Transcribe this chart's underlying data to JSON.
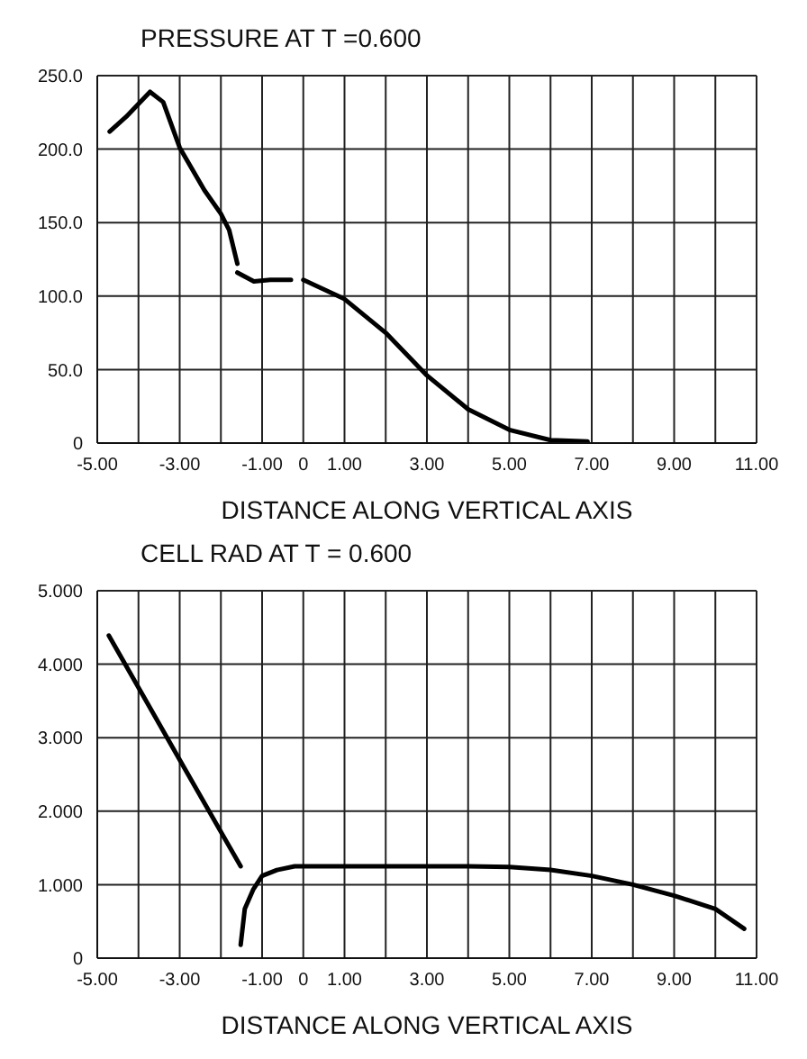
{
  "chart_data": [
    {
      "type": "line",
      "title": "PRESSURE AT T =0.600",
      "xlabel": "DISTANCE ALONG VERTICAL AXIS",
      "series": [
        {
          "color": "#000000",
          "x": [
            -4.7,
            -4.3,
            -3.72,
            -3.4,
            -3,
            -2.4,
            -2,
            -1.8,
            -1.6
          ],
          "values": [
            212,
            222,
            239,
            232,
            201,
            172,
            156,
            145,
            122
          ]
        },
        {
          "color": "#000000",
          "x": [
            -1.6,
            -1.2,
            -0.8,
            -0.3
          ],
          "values": [
            116,
            110,
            111,
            111
          ]
        },
        {
          "color": "#000000",
          "x": [
            0,
            1,
            2,
            3,
            4,
            5,
            6,
            6.9
          ],
          "values": [
            111,
            98,
            75,
            46,
            23,
            9,
            2,
            1
          ]
        }
      ],
      "xlim": [
        -5,
        11
      ],
      "ylim": [
        0,
        250
      ],
      "xticks": [
        {
          "value": -5,
          "label": "-5.00"
        },
        {
          "value": -4,
          "label": null
        },
        {
          "value": -3,
          "label": "-3.00"
        },
        {
          "value": -2,
          "label": null
        },
        {
          "value": -1,
          "label": "-1.00"
        },
        0,
        {
          "value": 1,
          "label": "1.00"
        },
        {
          "value": 2,
          "label": null
        },
        {
          "value": 3,
          "label": "3.00"
        },
        {
          "value": 4,
          "label": null
        },
        {
          "value": 5,
          "label": "5.00"
        },
        {
          "value": 6,
          "label": null
        },
        {
          "value": 7,
          "label": "7.00"
        },
        {
          "value": 8,
          "label": null
        },
        {
          "value": 9,
          "label": "9.00"
        },
        {
          "value": 10,
          "label": null
        },
        {
          "value": 11,
          "label": "11.00"
        }
      ],
      "yticks": [
        0,
        {
          "value": 50,
          "label": "50.0"
        },
        {
          "value": 100,
          "label": "100.0"
        },
        {
          "value": 150,
          "label": "150.0"
        },
        {
          "value": 200,
          "label": "200.0"
        },
        {
          "value": 250,
          "label": "250.0"
        }
      ],
      "grid": true,
      "marker": "none",
      "line_style": "solid"
    },
    {
      "type": "line",
      "title": "CELL RAD AT T = 0.600",
      "xlabel": "DISTANCE ALONG VERTICAL AXIS",
      "series": [
        {
          "color": "#000000",
          "x": [
            -4.72,
            -3,
            -1.52
          ],
          "values": [
            4.39,
            2.7,
            1.25
          ]
        },
        {
          "color": "#000000",
          "x": [
            -1.52,
            -1.42,
            -1.21,
            -1,
            -0.64,
            -0.21,
            0,
            2,
            4,
            5,
            6,
            7,
            8,
            9,
            10,
            10.7
          ],
          "values": [
            0.18,
            0.67,
            0.94,
            1.12,
            1.2,
            1.25,
            1.25,
            1.25,
            1.25,
            1.24,
            1.2,
            1.12,
            1,
            0.85,
            0.67,
            0.4
          ]
        }
      ],
      "xlim": [
        -5,
        11
      ],
      "ylim": [
        0,
        5
      ],
      "xticks": [
        {
          "value": -5,
          "label": "-5.00"
        },
        {
          "value": -4,
          "label": null
        },
        {
          "value": -3,
          "label": "-3.00"
        },
        {
          "value": -2,
          "label": null
        },
        {
          "value": -1,
          "label": "-1.00"
        },
        0,
        {
          "value": 1,
          "label": "1.00"
        },
        {
          "value": 2,
          "label": null
        },
        {
          "value": 3,
          "label": "3.00"
        },
        {
          "value": 4,
          "label": null
        },
        {
          "value": 5,
          "label": "5.00"
        },
        {
          "value": 6,
          "label": null
        },
        {
          "value": 7,
          "label": "7.00"
        },
        {
          "value": 8,
          "label": null
        },
        {
          "value": 9,
          "label": "9.00"
        },
        {
          "value": 10,
          "label": null
        },
        {
          "value": 11,
          "label": "11.00"
        }
      ],
      "yticks": [
        0,
        {
          "value": 1,
          "label": "1.000"
        },
        {
          "value": 2,
          "label": "2.000"
        },
        {
          "value": 3,
          "label": "3.000"
        },
        {
          "value": 4,
          "label": "4.000"
        },
        {
          "value": 5,
          "label": "5.000"
        }
      ],
      "grid": true,
      "marker": "none",
      "line_style": "solid"
    }
  ]
}
